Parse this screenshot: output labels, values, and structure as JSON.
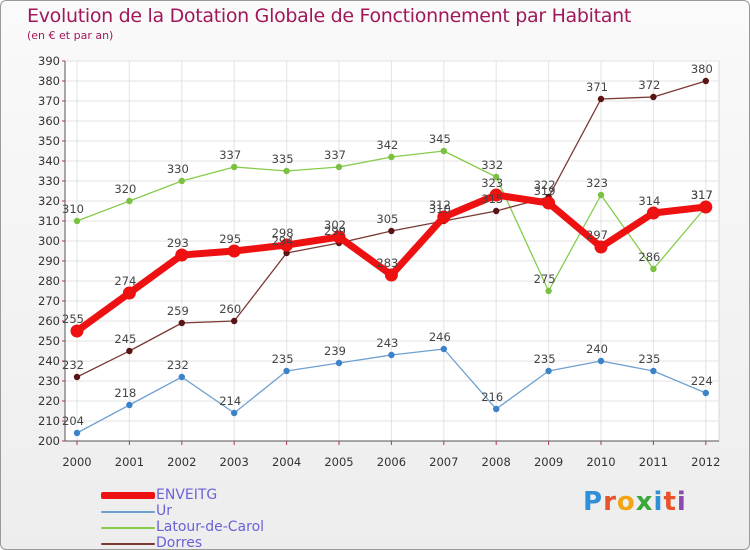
{
  "title": "Evolution de la Dotation Globale de Fonctionnement par Habitant",
  "subtitle": "(en € et par an)",
  "logo": "Proxiti",
  "chart_data": {
    "type": "line",
    "title": "Evolution de la Dotation Globale de Fonctionnement par Habitant",
    "subtitle": "(en € et par an)",
    "xlabel": "",
    "ylabel": "",
    "ylim": [
      200,
      390
    ],
    "ytick_step": 10,
    "grid": true,
    "legend_position": "bottom-left",
    "x": [
      "2000",
      "2001",
      "2002",
      "2003",
      "2004",
      "2005",
      "2006",
      "2007",
      "2008",
      "2009",
      "2010",
      "2011",
      "2012"
    ],
    "series": [
      {
        "name": "Latour-de-Carol",
        "color": "#86cc4a",
        "marker": "#7ac142",
        "values": [
          310,
          320,
          330,
          337,
          335,
          337,
          342,
          345,
          332,
          275,
          323,
          286,
          317
        ]
      },
      {
        "name": "Ur",
        "color": "#6fa0d0",
        "marker": "#3b82c8",
        "values": [
          204,
          218,
          232,
          214,
          235,
          239,
          243,
          246,
          216,
          235,
          240,
          235,
          224
        ]
      },
      {
        "name": "Dorres",
        "color": "#7a3a34",
        "marker": "#5a1414",
        "values": [
          232,
          245,
          259,
          260,
          294,
          299,
          305,
          310,
          315,
          322,
          371,
          372,
          380
        ]
      },
      {
        "name": "ENVEITG",
        "color": "#ee1111",
        "marker": "#ee1111",
        "highlight": true,
        "values": [
          255,
          274,
          293,
          295,
          298,
          302,
          283,
          312,
          323,
          319,
          297,
          314,
          317
        ]
      }
    ],
    "legend_order": [
      "ENVEITG",
      "Ur",
      "Latour-de-Carol",
      "Dorres"
    ]
  }
}
